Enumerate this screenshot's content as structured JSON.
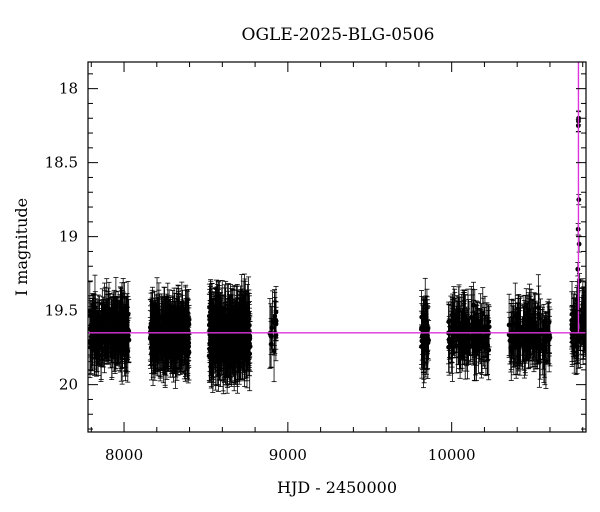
{
  "chart_data": {
    "type": "scatter",
    "title": "OGLE-2025-BLG-0506",
    "xlabel": "HJD - 2450000",
    "ylabel": "I magnitude",
    "xlim": [
      7780,
      10820
    ],
    "ylim": [
      20.32,
      17.82
    ],
    "y_inverted": true,
    "xticks": [
      8000,
      9000,
      10000
    ],
    "yticks": [
      18,
      18.5,
      19,
      19.5,
      20
    ],
    "ytick_labels": [
      "18",
      "18.5",
      "19",
      "19.5",
      "20"
    ],
    "baseline_magnitude": 19.65,
    "event_peak_hjd": 10774,
    "marker_color": "#000000",
    "model_color": "#dd33dd",
    "seasons": [
      {
        "start": 7790,
        "end": 8030,
        "mean_mag": 19.64,
        "scatter": 0.12,
        "typical_err": 0.16,
        "count": 260
      },
      {
        "start": 8160,
        "end": 8400,
        "mean_mag": 19.66,
        "scatter": 0.12,
        "typical_err": 0.16,
        "count": 320
      },
      {
        "start": 8520,
        "end": 8770,
        "mean_mag": 19.67,
        "scatter": 0.15,
        "typical_err": 0.17,
        "count": 420
      },
      {
        "start": 8890,
        "end": 8930,
        "mean_mag": 19.65,
        "scatter": 0.15,
        "typical_err": 0.16,
        "count": 18
      },
      {
        "start": 9810,
        "end": 9860,
        "mean_mag": 19.67,
        "scatter": 0.13,
        "typical_err": 0.17,
        "count": 40
      },
      {
        "start": 9980,
        "end": 10230,
        "mean_mag": 19.66,
        "scatter": 0.12,
        "typical_err": 0.16,
        "count": 150
      },
      {
        "start": 10350,
        "end": 10600,
        "mean_mag": 19.65,
        "scatter": 0.12,
        "typical_err": 0.16,
        "count": 150
      },
      {
        "start": 10730,
        "end": 10820,
        "mean_mag": 19.62,
        "scatter": 0.11,
        "typical_err": 0.15,
        "count": 70
      }
    ],
    "event_points": [
      {
        "x": 10774,
        "y": 18.22
      },
      {
        "x": 10773,
        "y": 18.25
      },
      {
        "x": 10775,
        "y": 18.2
      },
      {
        "x": 10776,
        "y": 18.75
      },
      {
        "x": 10772,
        "y": 18.95
      },
      {
        "x": 10778,
        "y": 19.05
      },
      {
        "x": 10770,
        "y": 19.22
      },
      {
        "x": 10780,
        "y": 19.3
      }
    ]
  }
}
